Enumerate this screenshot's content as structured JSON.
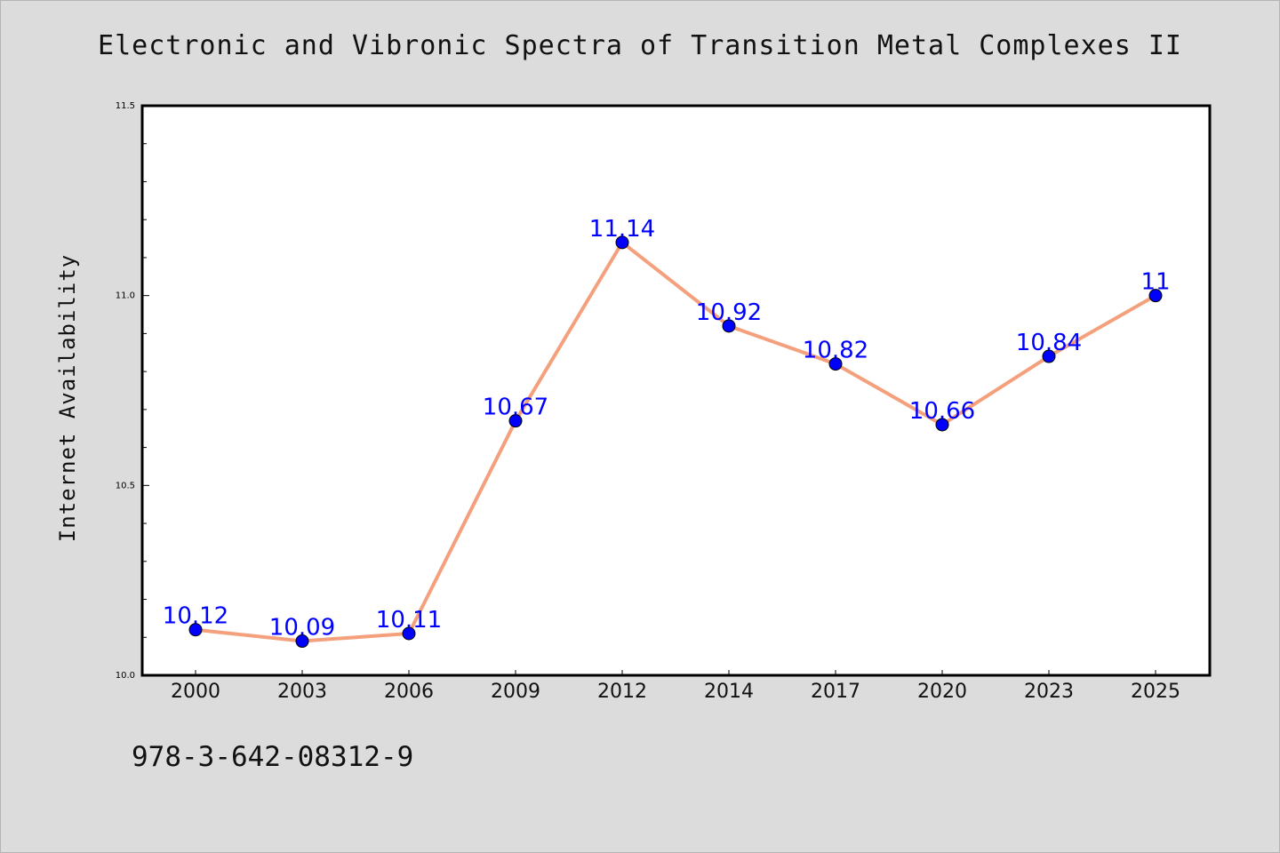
{
  "chart_data": {
    "type": "line",
    "title": "Electronic and Vibronic Spectra of Transition Metal Complexes II",
    "xlabel": "",
    "ylabel": "Internet Availability",
    "categories": [
      "2000",
      "2003",
      "2006",
      "2009",
      "2012",
      "2014",
      "2017",
      "2020",
      "2023",
      "2025"
    ],
    "series": [
      {
        "values": [
          10.12,
          10.09,
          10.11,
          10.67,
          11.14,
          10.92,
          10.82,
          10.66,
          10.84,
          11
        ],
        "labels": [
          "10.12",
          "10.09",
          "10.11",
          "10.67",
          "11.14",
          "10.92",
          "10.82",
          "10.66",
          "10.84",
          "11"
        ],
        "line_color": "#f4a07c",
        "marker_color": "#0000ff"
      }
    ],
    "ylim": [
      10.0,
      11.5
    ],
    "yticks": [
      "10.0",
      "10.5",
      "11.0",
      "11.5"
    ],
    "grid": false,
    "legend": "none",
    "label_color": "#0000ff"
  },
  "footer_text": "978-3-642-08312-9"
}
